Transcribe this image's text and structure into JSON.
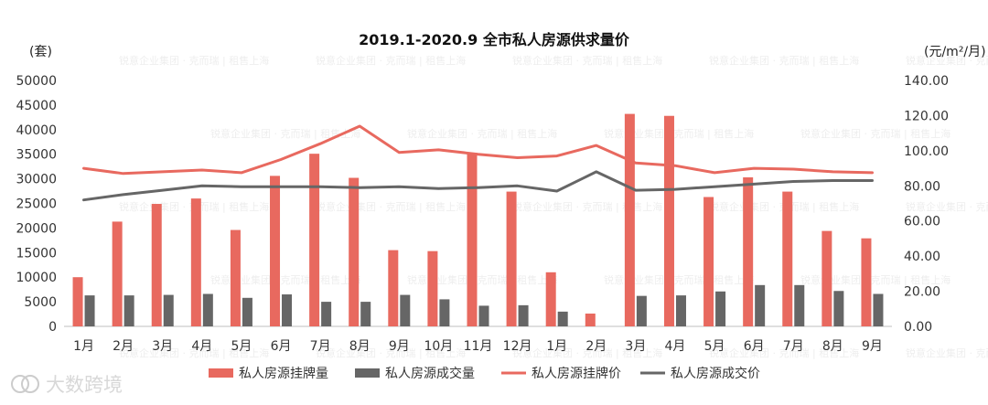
{
  "chart_data": {
    "type": "bar+line",
    "title": "2019.1-2020.9 全市私人房源供求量价",
    "y_left_label": "(套)",
    "y_right_label": "(元/m²/月)",
    "y_left_range": [
      0,
      50000
    ],
    "y_right_range": [
      0,
      140
    ],
    "y_left_ticks": [
      "0",
      "5000",
      "10000",
      "15000",
      "20000",
      "25000",
      "30000",
      "35000",
      "40000",
      "45000",
      "50000"
    ],
    "y_right_ticks": [
      "0.00",
      "20.00",
      "40.00",
      "60.00",
      "80.00",
      "100.00",
      "120.00",
      "140.00"
    ],
    "categories": [
      "1月",
      "2月",
      "3月",
      "4月",
      "5月",
      "6月",
      "7月",
      "8月",
      "9月",
      "10月",
      "11月",
      "12月",
      "1月",
      "2月",
      "3月",
      "4月",
      "5月",
      "6月",
      "7月",
      "8月",
      "9月"
    ],
    "series": [
      {
        "name": "私人房源挂牌量",
        "kind": "bar",
        "axis": "left",
        "color": "#e8695f",
        "values": [
          10000,
          21300,
          24900,
          26000,
          19600,
          30600,
          35100,
          30200,
          15500,
          15300,
          35300,
          27400,
          11000,
          2600,
          43200,
          42800,
          26300,
          30300,
          27400,
          19400,
          17900
        ]
      },
      {
        "name": "私人房源成交量",
        "kind": "bar",
        "axis": "left",
        "color": "#666666",
        "values": [
          6300,
          6300,
          6400,
          6600,
          5800,
          6500,
          5000,
          5000,
          6400,
          5500,
          4200,
          4300,
          3000,
          0,
          6200,
          6300,
          7100,
          8400,
          8400,
          7200,
          6600
        ]
      },
      {
        "name": "私人房源挂牌价",
        "kind": "line",
        "axis": "right",
        "color": "#e8695f",
        "values": [
          90,
          87,
          88,
          89,
          87.5,
          95,
          104,
          114,
          99,
          100.5,
          98,
          96,
          97,
          103,
          93,
          91.5,
          87.5,
          90,
          89.5,
          88,
          87.5
        ]
      },
      {
        "name": "私人房源成交价",
        "kind": "line",
        "axis": "right",
        "color": "#666666",
        "values": [
          72,
          75,
          77.5,
          80,
          79.5,
          79.5,
          79.5,
          79,
          79.5,
          78.5,
          79,
          80,
          77,
          88,
          77.5,
          78,
          79.5,
          81,
          82.5,
          83,
          83
        ]
      }
    ],
    "legend_position": "bottom"
  },
  "watermark": {
    "logo_text": "大数跨境",
    "repeated_text": "锐意企业集团 · 克而瑞 | 租售上海"
  }
}
